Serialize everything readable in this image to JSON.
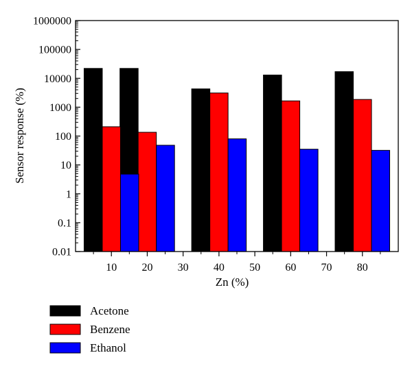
{
  "chart_data": {
    "type": "bar",
    "xlabel": "Zn (%)",
    "ylabel": "Sensor response (%)",
    "y_scale": "log",
    "ylim": [
      0.01,
      1000000
    ],
    "y_ticks": [
      "0.01",
      "0.1",
      "1",
      "10",
      "100",
      "1000",
      "10000",
      "100000",
      "1000000"
    ],
    "x_ticks": [
      "10",
      "20",
      "30",
      "40",
      "50",
      "60",
      "70",
      "80"
    ],
    "xlim": [
      0,
      90
    ],
    "legend_position": "bottom-left",
    "grid": false,
    "series": [
      {
        "name": "Acetone",
        "color": "#000000",
        "x": [
          10,
          20,
          40,
          60,
          80
        ],
        "values": [
          22000,
          22000,
          4300,
          13000,
          17000
        ]
      },
      {
        "name": "Benzene",
        "color": "#ff0000",
        "x": [
          10,
          20,
          40,
          60,
          80
        ],
        "values": [
          210,
          135,
          3100,
          1650,
          1850
        ]
      },
      {
        "name": "Ethanol",
        "color": "#0000ff",
        "x": [
          10,
          20,
          40,
          60,
          80
        ],
        "values": [
          4.8,
          48,
          80,
          35,
          32
        ]
      }
    ]
  }
}
